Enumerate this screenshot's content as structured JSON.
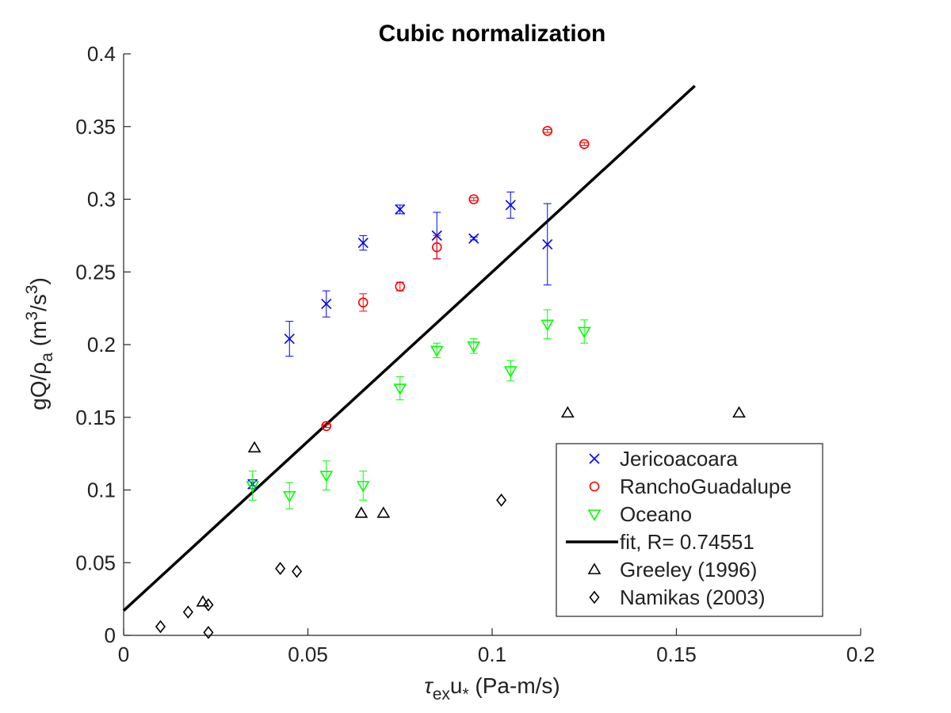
{
  "chart_data": {
    "type": "scatter",
    "title": "Cubic normalization",
    "xlabel": {
      "main": "τ",
      "sub": "ex",
      "mid": "u",
      "sub2": "*",
      "rest": " (Pa-m/s)"
    },
    "ylabel": {
      "main": "gQ/ρ",
      "sub": "a",
      "mid": " (m",
      "sup": "3",
      "mid2": "/s",
      "sup2": "3",
      "rest": ")"
    },
    "xlim": [
      0,
      0.2
    ],
    "ylim": [
      0,
      0.4
    ],
    "xticks": [
      0,
      0.05,
      0.1,
      0.15,
      0.2
    ],
    "xtick_labels": [
      "0",
      "0.05",
      "0.1",
      "0.15",
      "0.2"
    ],
    "yticks": [
      0,
      0.05,
      0.1,
      0.15,
      0.2,
      0.25,
      0.3,
      0.35,
      0.4
    ],
    "ytick_labels": [
      "0",
      "0.05",
      "0.1",
      "0.15",
      "0.2",
      "0.25",
      "0.3",
      "0.35",
      "0.4"
    ],
    "grid": false,
    "legend_position": "bottom-right",
    "series": [
      {
        "name": "Jericoacoara",
        "marker": "x",
        "color": "#0000ff",
        "points": [
          {
            "x": 0.035,
            "y": 0.104,
            "err": 0.003
          },
          {
            "x": 0.045,
            "y": 0.204,
            "err": 0.012
          },
          {
            "x": 0.055,
            "y": 0.228,
            "err": 0.009
          },
          {
            "x": 0.065,
            "y": 0.27,
            "err": 0.005
          },
          {
            "x": 0.075,
            "y": 0.293,
            "err": 0.003
          },
          {
            "x": 0.085,
            "y": 0.275,
            "err": 0.016
          },
          {
            "x": 0.095,
            "y": 0.273,
            "err": 0.001
          },
          {
            "x": 0.105,
            "y": 0.296,
            "err": 0.009
          },
          {
            "x": 0.115,
            "y": 0.269,
            "err": 0.028
          }
        ]
      },
      {
        "name": "RanchoGuadalupe",
        "marker": "o",
        "color": "#ff0000",
        "points": [
          {
            "x": 0.055,
            "y": 0.144,
            "err": 0.001
          },
          {
            "x": 0.065,
            "y": 0.229,
            "err": 0.006
          },
          {
            "x": 0.075,
            "y": 0.24,
            "err": 0.003
          },
          {
            "x": 0.085,
            "y": 0.267,
            "err": 0.008
          },
          {
            "x": 0.095,
            "y": 0.3,
            "err": 0.001
          },
          {
            "x": 0.115,
            "y": 0.347,
            "err": 0.001
          },
          {
            "x": 0.125,
            "y": 0.338,
            "err": 0.001
          }
        ]
      },
      {
        "name": "Oceano",
        "marker": "triangle-down",
        "color": "#00ff00",
        "points": [
          {
            "x": 0.035,
            "y": 0.103,
            "err": 0.01
          },
          {
            "x": 0.045,
            "y": 0.096,
            "err": 0.009
          },
          {
            "x": 0.055,
            "y": 0.11,
            "err": 0.01
          },
          {
            "x": 0.065,
            "y": 0.103,
            "err": 0.01
          },
          {
            "x": 0.075,
            "y": 0.17,
            "err": 0.008
          },
          {
            "x": 0.085,
            "y": 0.196,
            "err": 0.005
          },
          {
            "x": 0.095,
            "y": 0.199,
            "err": 0.005
          },
          {
            "x": 0.105,
            "y": 0.182,
            "err": 0.007
          },
          {
            "x": 0.115,
            "y": 0.214,
            "err": 0.01
          },
          {
            "x": 0.125,
            "y": 0.209,
            "err": 0.008
          }
        ]
      },
      {
        "name": "fit, R= 0.74551",
        "marker": "line",
        "color": "#000000",
        "points": [
          {
            "x": 0.0,
            "y": 0.017
          },
          {
            "x": 0.155,
            "y": 0.378
          }
        ]
      },
      {
        "name": "Greeley (1996)",
        "marker": "triangle-up",
        "color": "#000000",
        "points": [
          {
            "x": 0.0215,
            "y": 0.023
          },
          {
            "x": 0.0355,
            "y": 0.129
          },
          {
            "x": 0.0645,
            "y": 0.084
          },
          {
            "x": 0.0705,
            "y": 0.084
          },
          {
            "x": 0.1205,
            "y": 0.153
          },
          {
            "x": 0.167,
            "y": 0.153
          }
        ]
      },
      {
        "name": "Namikas (2003)",
        "marker": "diamond",
        "color": "#000000",
        "points": [
          {
            "x": 0.01,
            "y": 0.006
          },
          {
            "x": 0.0175,
            "y": 0.016
          },
          {
            "x": 0.023,
            "y": 0.021
          },
          {
            "x": 0.023,
            "y": 0.002
          },
          {
            "x": 0.0425,
            "y": 0.046
          },
          {
            "x": 0.047,
            "y": 0.044
          },
          {
            "x": 0.1025,
            "y": 0.093
          }
        ]
      }
    ]
  }
}
